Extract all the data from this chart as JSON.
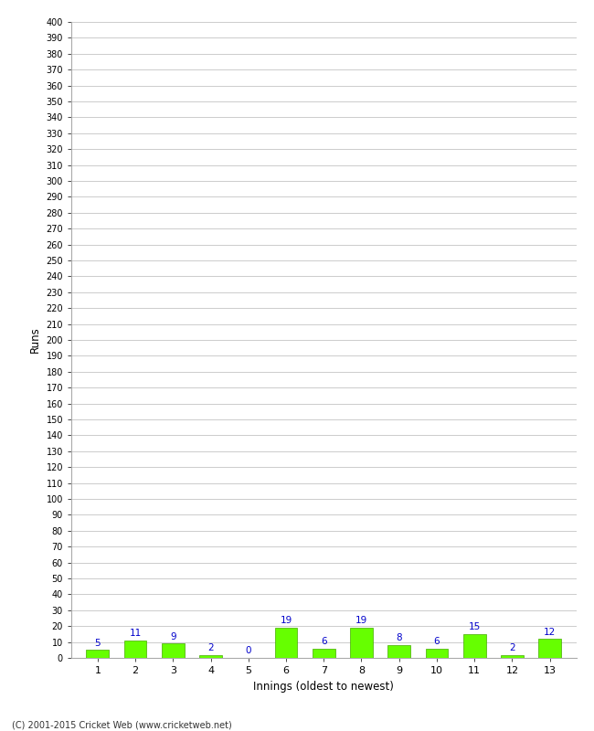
{
  "xlabel": "Innings (oldest to newest)",
  "ylabel": "Runs",
  "categories": [
    1,
    2,
    3,
    4,
    5,
    6,
    7,
    8,
    9,
    10,
    11,
    12,
    13
  ],
  "values": [
    5,
    11,
    9,
    2,
    0,
    19,
    6,
    19,
    8,
    6,
    15,
    2,
    12
  ],
  "bar_color": "#66ff00",
  "bar_edge_color": "#44aa00",
  "label_color": "#0000cc",
  "ylim": [
    0,
    400
  ],
  "background_color": "#ffffff",
  "grid_color": "#cccccc",
  "footer": "(C) 2001-2015 Cricket Web (www.cricketweb.net)"
}
